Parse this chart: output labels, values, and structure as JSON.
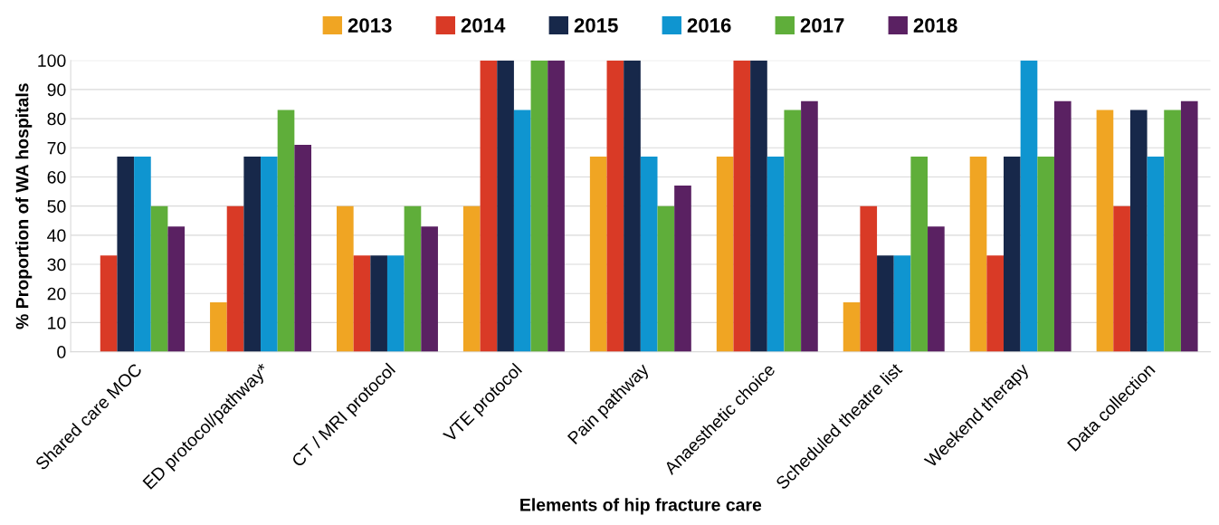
{
  "chart_data": {
    "type": "bar",
    "xlabel": "Elements of hip fracture care",
    "ylabel": "% Proportion of WA hospitals",
    "categories": [
      "Shared care MOC",
      "ED protocol/pathway*",
      "CT / MRI protocol",
      "VTE protocol",
      "Pain pathway",
      "Anaesthetic choice",
      "Scheduled theatre list",
      "Weekend therapy",
      "Data collection"
    ],
    "series": [
      {
        "name": "2013",
        "color": "#f0a523",
        "values": [
          0,
          17,
          50,
          50,
          67,
          67,
          17,
          67,
          83
        ]
      },
      {
        "name": "2014",
        "color": "#d93a26",
        "values": [
          33,
          50,
          33,
          100,
          100,
          100,
          50,
          33,
          50
        ]
      },
      {
        "name": "2015",
        "color": "#17284a",
        "values": [
          67,
          67,
          33,
          100,
          100,
          100,
          33,
          67,
          83
        ]
      },
      {
        "name": "2016",
        "color": "#0f95d0",
        "values": [
          67,
          67,
          33,
          83,
          67,
          67,
          33,
          100,
          67
        ]
      },
      {
        "name": "2017",
        "color": "#5fae3a",
        "values": [
          50,
          83,
          50,
          100,
          50,
          83,
          67,
          67,
          83
        ]
      },
      {
        "name": "2018",
        "color": "#5a2162",
        "values": [
          43,
          71,
          43,
          100,
          57,
          86,
          43,
          86,
          86
        ]
      }
    ],
    "ylim": [
      0,
      100
    ],
    "yticks": [
      0,
      10,
      20,
      30,
      40,
      50,
      60,
      70,
      80,
      90,
      100
    ],
    "grid": "y",
    "legend": "top"
  }
}
